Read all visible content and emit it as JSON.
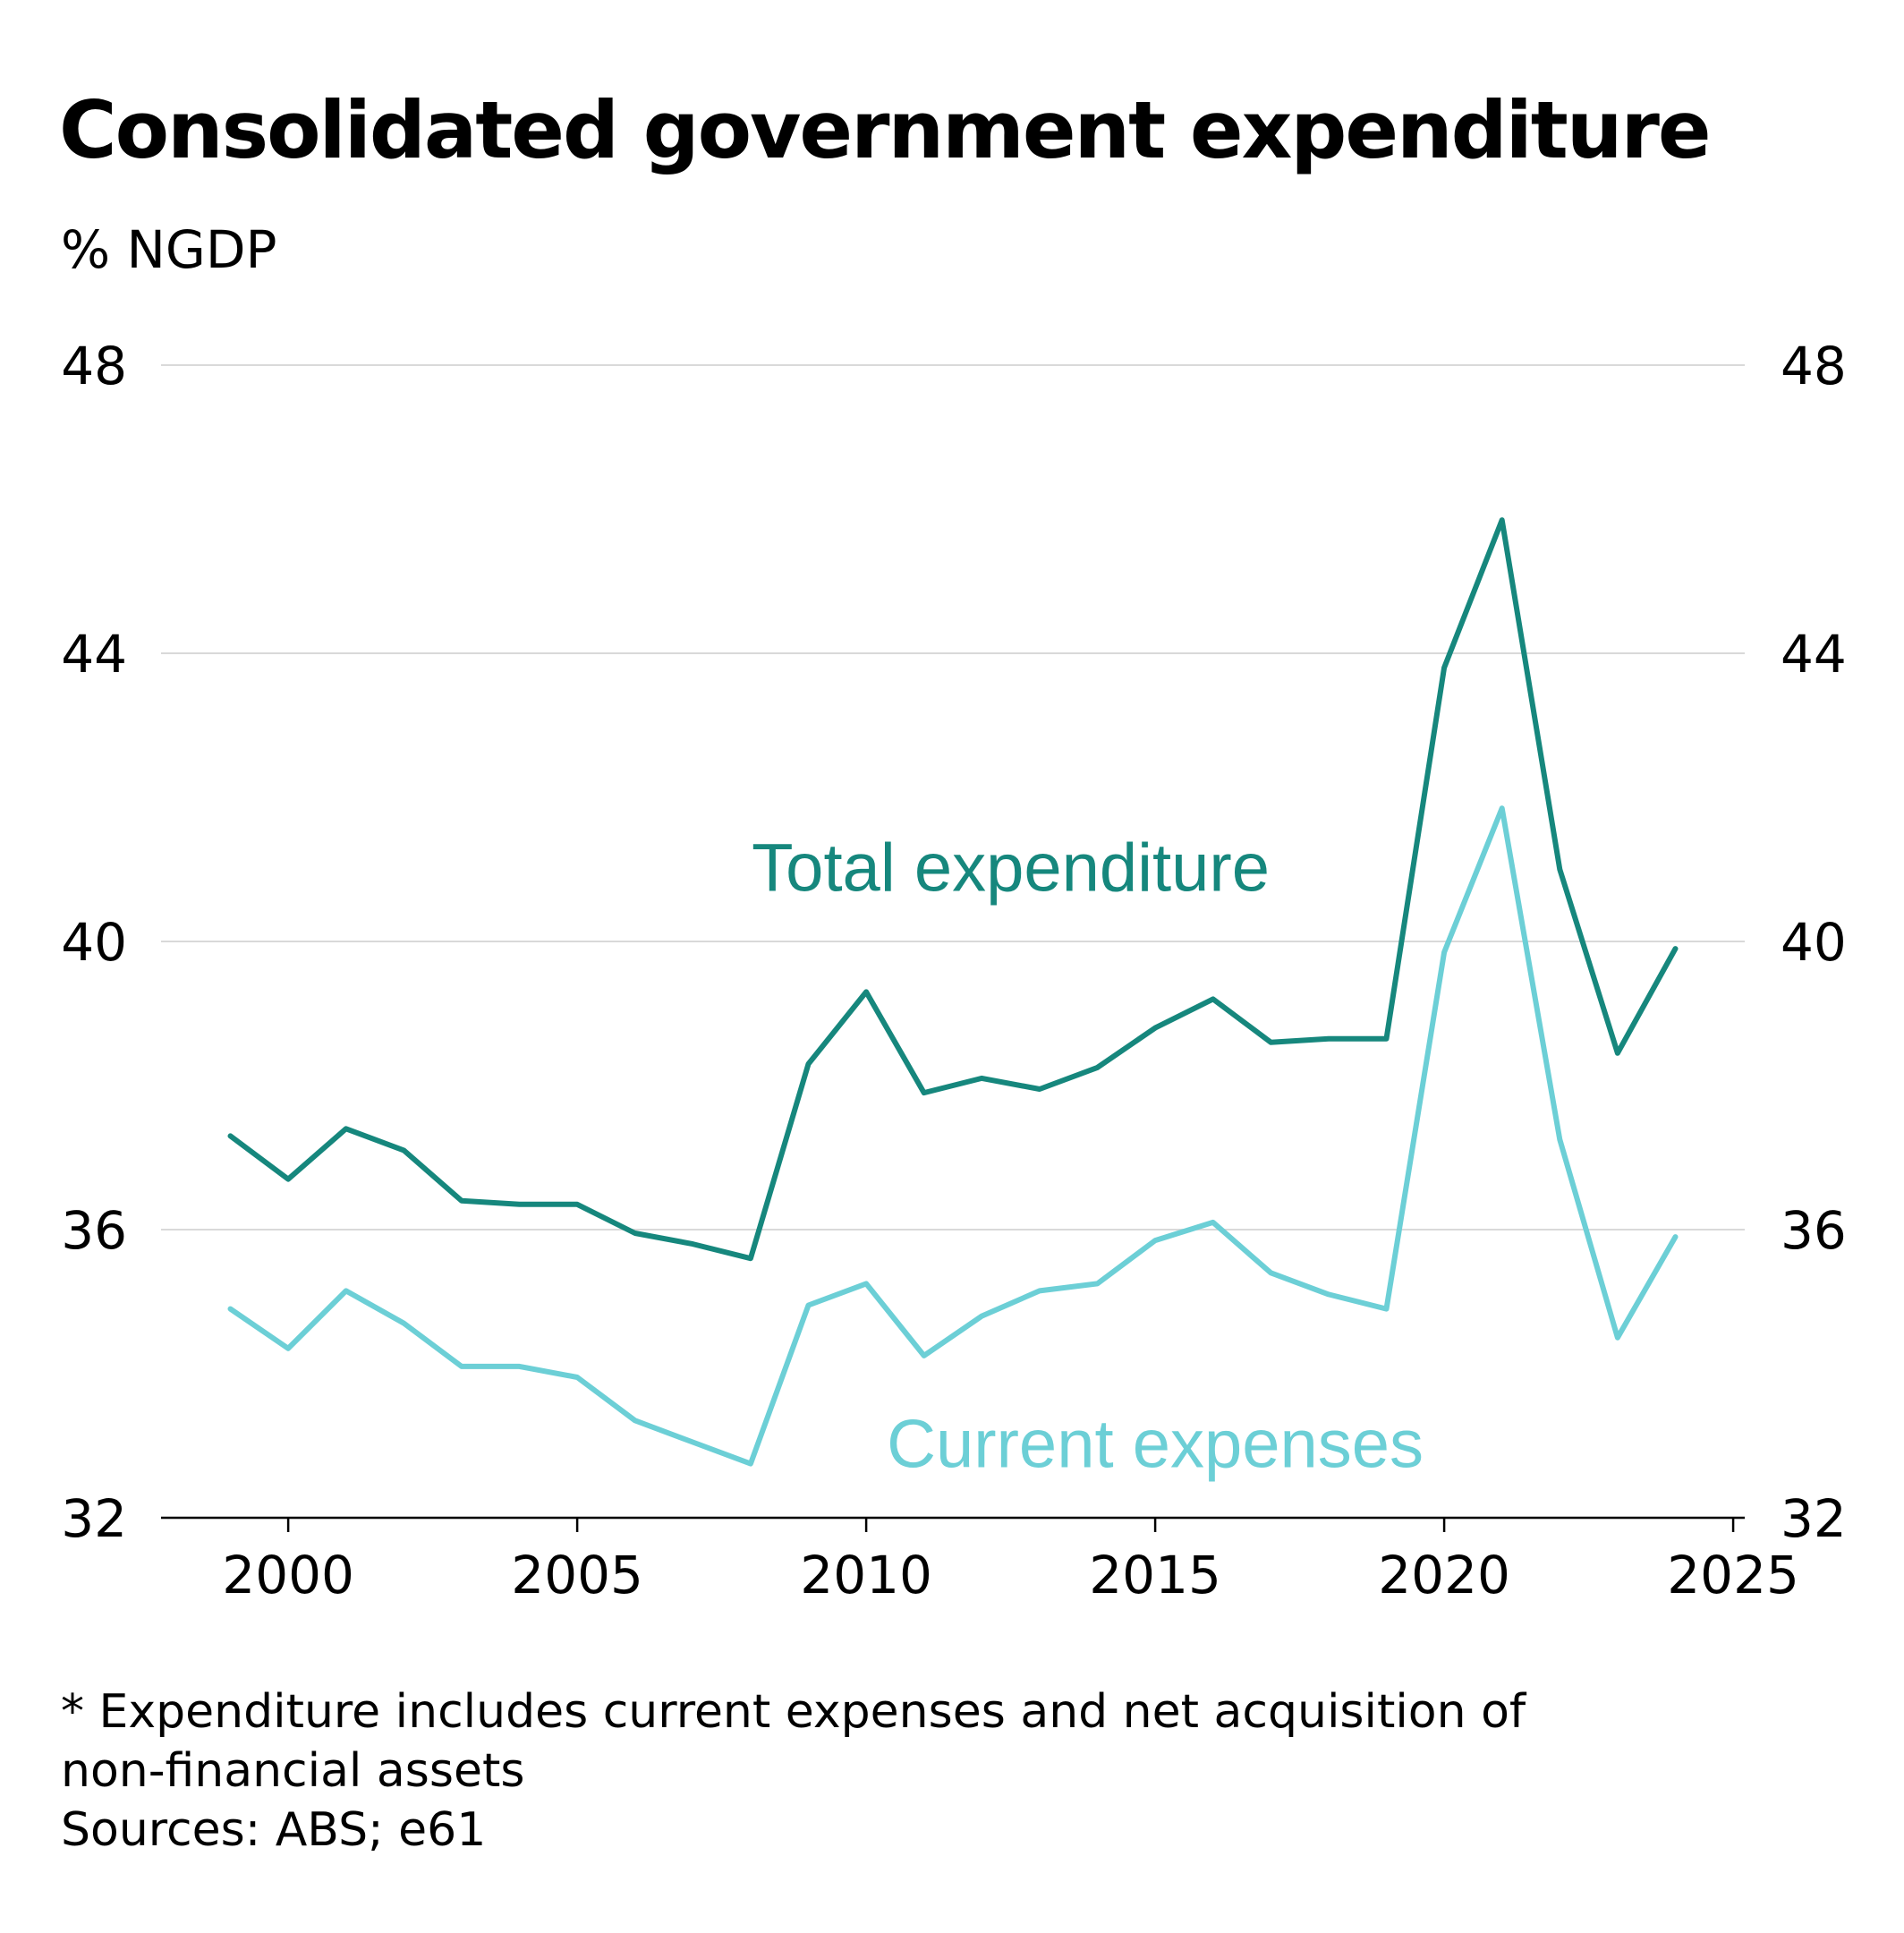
{
  "title": "Consolidated government expenditure",
  "unit_label": "% NGDP",
  "footnote": "* Expenditure includes current expenses and net acquisition of",
  "footnote_cont": "non-financial assets",
  "sources": "Sources: ABS; e61",
  "chart_data": {
    "type": "line",
    "title": "Consolidated government expenditure",
    "ylabel": "% NGDP",
    "xlabel": "",
    "xlim": [
      1997.8,
      2025.2
    ],
    "ylim": [
      32,
      48
    ],
    "x_ticks": [
      "2000",
      "2005",
      "2010",
      "2015",
      "2020",
      "2025"
    ],
    "y_ticks": [
      "32",
      "36",
      "40",
      "44",
      "48"
    ],
    "grid": true,
    "x": [
      1999,
      2000,
      2001,
      2002,
      2003,
      2004,
      2005,
      2006,
      2007,
      2008,
      2009,
      2010,
      2011,
      2012,
      2013,
      2014,
      2015,
      2016,
      2017,
      2018,
      2019,
      2020,
      2021,
      2022,
      2023,
      2024
    ],
    "series": [
      {
        "name": "Total expenditure",
        "color": "#16877d",
        "values": [
          37.3,
          36.7,
          37.4,
          37.1,
          36.4,
          36.35,
          36.35,
          35.95,
          35.8,
          35.6,
          38.3,
          39.3,
          37.9,
          38.1,
          37.95,
          38.25,
          38.8,
          39.2,
          38.6,
          38.65,
          38.65,
          43.8,
          45.85,
          41.0,
          38.45,
          39.9
        ],
        "label_position": "upper-middle"
      },
      {
        "name": "Current expenses",
        "color": "#6ccfd6",
        "values": [
          34.9,
          34.35,
          35.15,
          34.7,
          34.1,
          34.1,
          33.95,
          33.35,
          33.05,
          32.75,
          34.95,
          35.25,
          34.25,
          34.8,
          35.15,
          35.25,
          35.85,
          36.1,
          35.4,
          35.1,
          34.9,
          39.85,
          41.85,
          37.25,
          34.5,
          35.9
        ],
        "label_position": "lower-middle"
      }
    ]
  }
}
